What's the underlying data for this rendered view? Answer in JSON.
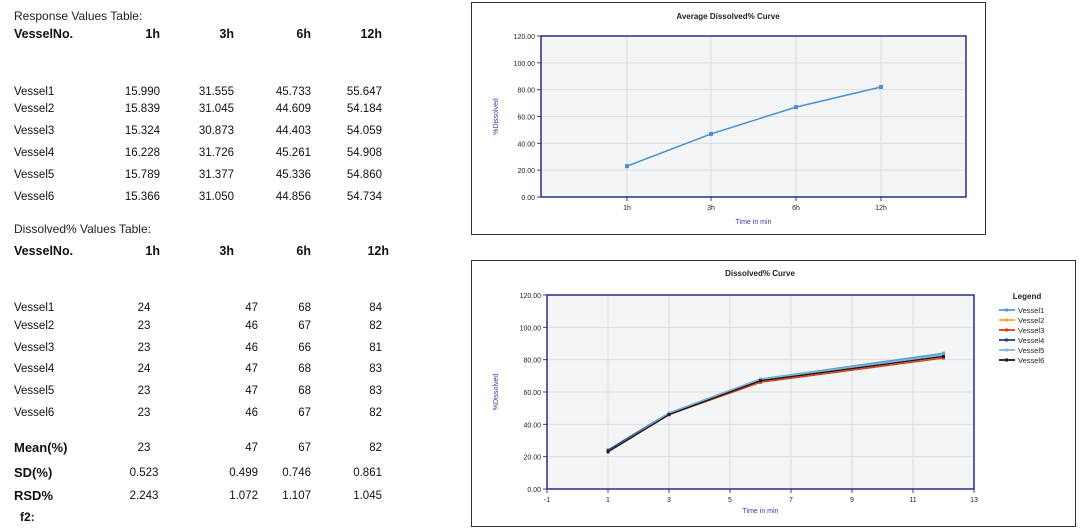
{
  "response_table": {
    "title": "Response Values Table:",
    "headers": [
      "VesselNo.",
      "1h",
      "3h",
      "6h",
      "12h"
    ],
    "rows": [
      [
        "Vessel1",
        "15.990",
        "31.555",
        "45.733",
        "55.647"
      ],
      [
        "Vessel2",
        "15.839",
        "31.045",
        "44.609",
        "54.184"
      ],
      [
        "Vessel3",
        "15.324",
        "30.873",
        "44.403",
        "54.059"
      ],
      [
        "Vessel4",
        "16.228",
        "31.726",
        "45.261",
        "54.908"
      ],
      [
        "Vessel5",
        "15.789",
        "31.377",
        "45.336",
        "54.860"
      ],
      [
        "Vessel6",
        "15.366",
        "31.050",
        "44.856",
        "54.734"
      ]
    ]
  },
  "dissolved_table": {
    "title": "Dissolved% Values Table:",
    "headers": [
      "VesselNo.",
      "1h",
      "3h",
      "6h",
      "12h"
    ],
    "rows": [
      [
        "Vessel1",
        "24",
        "47",
        "68",
        "84"
      ],
      [
        "Vessel2",
        "23",
        "46",
        "67",
        "82"
      ],
      [
        "Vessel3",
        "23",
        "46",
        "66",
        "81"
      ],
      [
        "Vessel4",
        "24",
        "47",
        "68",
        "83"
      ],
      [
        "Vessel5",
        "23",
        "47",
        "68",
        "83"
      ],
      [
        "Vessel6",
        "23",
        "46",
        "67",
        "82"
      ]
    ],
    "stats": [
      [
        "Mean(%)",
        "23",
        "47",
        "67",
        "82"
      ],
      [
        "SD(%)",
        "0.523",
        "0.499",
        "0.746",
        "0.861"
      ],
      [
        "RSD%",
        "2.243",
        "1.072",
        "1.107",
        "1.045"
      ]
    ],
    "f2_label": "f2:"
  },
  "chart_data": [
    {
      "type": "line",
      "title": "Average Dissolved% Curve",
      "xlabel": "Time in min",
      "ylabel": "%Dissolved",
      "categories": [
        "1h",
        "3h",
        "6h",
        "12h"
      ],
      "series": [
        {
          "values": [
            23,
            47,
            67,
            82
          ],
          "color": "#4a90d0"
        }
      ],
      "ylim": [
        0,
        120
      ],
      "yticks": [
        "0.00",
        "20.00",
        "40.00",
        "60.00",
        "80.00",
        "100.00",
        "120.00"
      ],
      "grid": true
    },
    {
      "type": "line",
      "title": "Dissolved% Curve",
      "xlabel": "Time in min",
      "ylabel": "%Dissolved",
      "legend_title": "Legend",
      "legend_position": "right",
      "x": [
        1,
        3,
        6,
        12
      ],
      "xlim": [
        -1,
        13
      ],
      "xticks": [
        "-1",
        "1",
        "3",
        "5",
        "7",
        "9",
        "11",
        "13"
      ],
      "ylim": [
        0,
        120
      ],
      "yticks": [
        "0.00",
        "20.00",
        "40.00",
        "60.00",
        "80.00",
        "100.00",
        "120.00"
      ],
      "grid": true,
      "series": [
        {
          "name": "Vessel1",
          "values": [
            24,
            47,
            68,
            84
          ],
          "color": "#5b9bd5"
        },
        {
          "name": "Vessel2",
          "values": [
            23,
            46,
            67,
            82
          ],
          "color": "#f0a830"
        },
        {
          "name": "Vessel3",
          "values": [
            23,
            46,
            66,
            81
          ],
          "color": "#d8401c"
        },
        {
          "name": "Vessel4",
          "values": [
            24,
            47,
            68,
            83
          ],
          "color": "#1f3f8a"
        },
        {
          "name": "Vessel5",
          "values": [
            23,
            47,
            68,
            83
          ],
          "color": "#7fb8e0"
        },
        {
          "name": "Vessel6",
          "values": [
            23,
            46,
            67,
            82
          ],
          "color": "#1a1a1a"
        }
      ]
    }
  ]
}
